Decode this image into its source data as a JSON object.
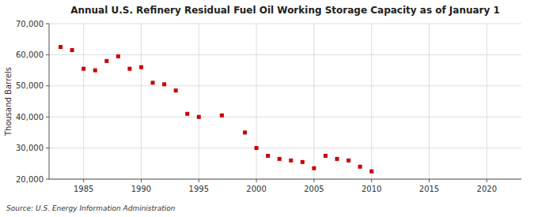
{
  "chart_data": {
    "type": "scatter",
    "title": "Annual U.S. Refinery Residual Fuel Oil Working Storage Capacity as of January 1",
    "ylabel": "Thousand Barrels",
    "source": "Source: U.S. Energy Information Administration",
    "color": "#cc0000",
    "marker": "square",
    "x": [
      1983,
      1984,
      1985,
      1986,
      1987,
      1988,
      1989,
      1990,
      1991,
      1992,
      1993,
      1994,
      1995,
      1997,
      1999,
      2000,
      2001,
      2002,
      2003,
      2004,
      2005,
      2006,
      2007,
      2008,
      2009,
      2010
    ],
    "values": [
      62500,
      61500,
      55500,
      55000,
      58000,
      59500,
      55500,
      56000,
      51000,
      50500,
      48500,
      41000,
      40000,
      40500,
      35000,
      30000,
      27500,
      26500,
      26000,
      25500,
      23500,
      27500,
      26500,
      26000,
      24000,
      22500
    ],
    "xlim": [
      1982,
      2023
    ],
    "ylim": [
      20000,
      70000
    ],
    "xticks": [
      1985,
      1990,
      1995,
      2000,
      2005,
      2010,
      2015,
      2020
    ],
    "yticks": [
      {
        "value": 20000,
        "label": "20,000"
      },
      {
        "value": 30000,
        "label": "30,000"
      },
      {
        "value": 40000,
        "label": "40,000"
      },
      {
        "value": 50000,
        "label": "50,000"
      },
      {
        "value": 60000,
        "label": "60,000"
      },
      {
        "value": 70000,
        "label": "70,000"
      }
    ],
    "grid": true
  }
}
